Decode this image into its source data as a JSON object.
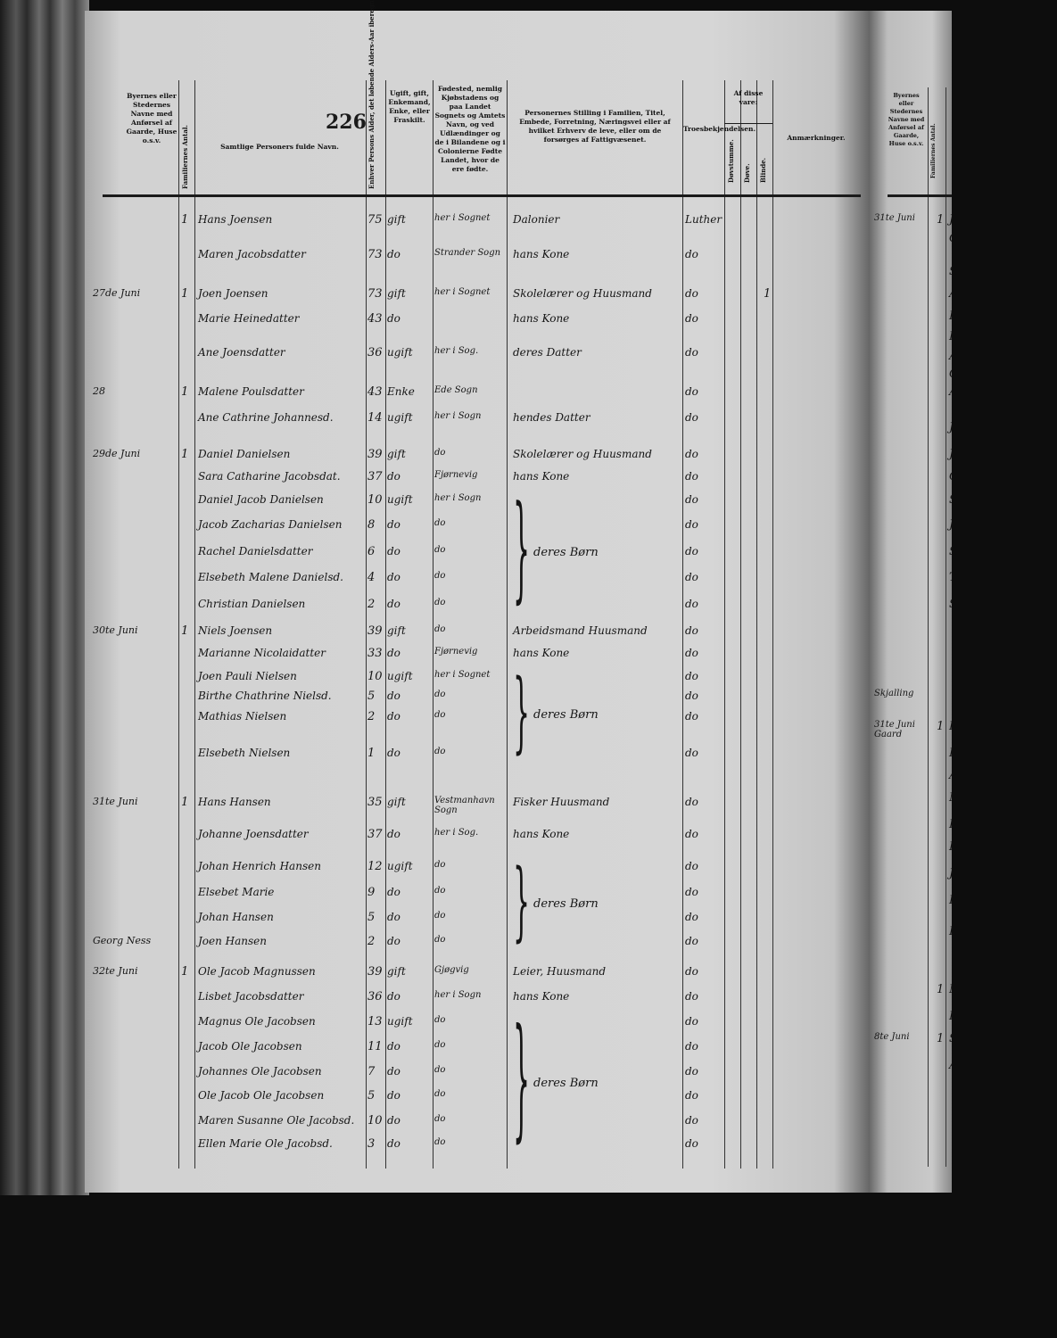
{
  "page_number": "226",
  "headers": {
    "place": "Byernes eller Stedernes Navne med Anførsel af Gaarde, Huse o.s.v.",
    "families": "Familiernes Antal.",
    "name": "Samtlige Personers fulde Navn.",
    "age": "Enhver Persons Alder, det løbende Alders-Aar iberegnet.",
    "civil": "Ugift, gift, Enkemand, Enke, eller Fraskilt.",
    "birthplace": "Fødested, nemlig Kjøbstadens og paa Landet Sognets og Amtets Navn, og ved Udlændinger og de i Bilandene og i Colonierne Fødte Landet, hvor de ere fødte.",
    "occupation": "Personernes Stilling i Familien, Titel, Embede, Forretning, Næringsvei eller af hvilket Erhverv de leve, eller om de forsørges af Fattigvæsenet.",
    "religion": "Troesbekjendelsen.",
    "of_these": "Af disse vare:",
    "deaf_mute": "Døvstumme.",
    "deaf": "Døve.",
    "blind": "Blinde.",
    "remarks": "Anmærkninger."
  },
  "rows": [
    {
      "place": "",
      "fam": "1",
      "name": "Hans Joensen",
      "age": "75",
      "civil": "gift",
      "birth": "her i Sognet",
      "occ": "Dalonier",
      "rel": "Luther",
      "mark": ""
    },
    {
      "place": "",
      "fam": "",
      "name": "Maren Jacobsdatter",
      "age": "73",
      "civil": "do",
      "birth": "Strander Sogn",
      "occ": "hans Kone",
      "rel": "do",
      "mark": ""
    },
    {
      "place": "27de Juni",
      "fam": "1",
      "name": "Joen Joensen",
      "age": "73",
      "civil": "gift",
      "birth": "her i Sognet",
      "occ": "Skolelærer og Huusmand",
      "rel": "do",
      "mark": "1"
    },
    {
      "place": "",
      "fam": "",
      "name": "Marie Heinedatter",
      "age": "43",
      "civil": "do",
      "birth": "",
      "occ": "hans Kone",
      "rel": "do",
      "mark": ""
    },
    {
      "place": "",
      "fam": "",
      "name": "Ane Joensdatter",
      "age": "36",
      "civil": "ugift",
      "birth": "her i Sog.",
      "occ": "deres Datter",
      "rel": "do",
      "mark": ""
    },
    {
      "place": "28",
      "fam": "1",
      "name": "Malene Poulsdatter",
      "age": "43",
      "civil": "Enke",
      "birth": "Ede Sogn",
      "occ": "",
      "rel": "do",
      "mark": ""
    },
    {
      "place": "",
      "fam": "",
      "name": "Ane Cathrine Johannesd.",
      "age": "14",
      "civil": "ugift",
      "birth": "her i Sogn",
      "occ": "hendes Datter",
      "rel": "do",
      "mark": ""
    },
    {
      "place": "29de Juni",
      "fam": "1",
      "name": "Daniel Danielsen",
      "age": "39",
      "civil": "gift",
      "birth": "do",
      "occ": "Skolelærer og Huusmand",
      "rel": "do",
      "mark": ""
    },
    {
      "place": "",
      "fam": "",
      "name": "Sara Catharine Jacobsdat.",
      "age": "37",
      "civil": "do",
      "birth": "Fjørnevig",
      "occ": "hans Kone",
      "rel": "do",
      "mark": ""
    },
    {
      "place": "",
      "fam": "",
      "name": "Daniel Jacob Danielsen",
      "age": "10",
      "civil": "ugift",
      "birth": "her i Sogn",
      "occ": "",
      "rel": "do",
      "mark": ""
    },
    {
      "place": "",
      "fam": "",
      "name": "Jacob Zacharias Danielsen",
      "age": "8",
      "civil": "do",
      "birth": "do",
      "occ": "",
      "rel": "do",
      "mark": ""
    },
    {
      "place": "",
      "fam": "",
      "name": "Rachel Danielsdatter",
      "age": "6",
      "civil": "do",
      "birth": "do",
      "occ": "",
      "rel": "do",
      "mark": ""
    },
    {
      "place": "",
      "fam": "",
      "name": "Elsebeth Malene Danielsd.",
      "age": "4",
      "civil": "do",
      "birth": "do",
      "occ": "",
      "rel": "do",
      "mark": ""
    },
    {
      "place": "",
      "fam": "",
      "name": "Christian Danielsen",
      "age": "2",
      "civil": "do",
      "birth": "do",
      "occ": "",
      "rel": "do",
      "mark": ""
    },
    {
      "place": "30te Juni",
      "fam": "1",
      "name": "Niels Joensen",
      "age": "39",
      "civil": "gift",
      "birth": "do",
      "occ": "Arbeidsmand Huusmand",
      "rel": "do",
      "mark": ""
    },
    {
      "place": "",
      "fam": "",
      "name": "Marianne Nicolaidatter",
      "age": "33",
      "civil": "do",
      "birth": "Fjørnevig",
      "occ": "hans Kone",
      "rel": "do",
      "mark": ""
    },
    {
      "place": "",
      "fam": "",
      "name": "Joen Pauli Nielsen",
      "age": "10",
      "civil": "ugift",
      "birth": "her i Sognet",
      "occ": "",
      "rel": "do",
      "mark": ""
    },
    {
      "place": "",
      "fam": "",
      "name": "Birthe Chathrine Nielsd.",
      "age": "5",
      "civil": "do",
      "birth": "do",
      "occ": "",
      "rel": "do",
      "mark": ""
    },
    {
      "place": "",
      "fam": "",
      "name": "Mathias Nielsen",
      "age": "2",
      "civil": "do",
      "birth": "do",
      "occ": "",
      "rel": "do",
      "mark": ""
    },
    {
      "place": "",
      "fam": "",
      "name": "Elsebeth Nielsen",
      "age": "1",
      "civil": "do",
      "birth": "do",
      "occ": "",
      "rel": "do",
      "mark": ""
    },
    {
      "place": "31te Juni",
      "fam": "1",
      "name": "Hans Hansen",
      "age": "35",
      "civil": "gift",
      "birth": "Vestmanhavn Sogn",
      "occ": "Fisker   Huusmand",
      "rel": "do",
      "mark": ""
    },
    {
      "place": "",
      "fam": "",
      "name": "Johanne Joensdatter",
      "age": "37",
      "civil": "do",
      "birth": "her i Sog.",
      "occ": "hans Kone",
      "rel": "do",
      "mark": ""
    },
    {
      "place": "",
      "fam": "",
      "name": "Johan Henrich Hansen",
      "age": "12",
      "civil": "ugift",
      "birth": "do",
      "occ": "",
      "rel": "do",
      "mark": ""
    },
    {
      "place": "",
      "fam": "",
      "name": "Elsebet Marie",
      "age": "9",
      "civil": "do",
      "birth": "do",
      "occ": "",
      "rel": "do",
      "mark": ""
    },
    {
      "place": "",
      "fam": "",
      "name": "Johan Hansen",
      "age": "5",
      "civil": "do",
      "birth": "do",
      "occ": "",
      "rel": "do",
      "mark": ""
    },
    {
      "place": "Georg Ness",
      "fam": "",
      "name": "Joen Hansen",
      "age": "2",
      "civil": "do",
      "birth": "do",
      "occ": "",
      "rel": "do",
      "mark": ""
    },
    {
      "place": "32te Juni",
      "fam": "1",
      "name": "Ole Jacob Magnussen",
      "age": "39",
      "civil": "gift",
      "birth": "Gjøgvig",
      "occ": "Leier, Huusmand",
      "rel": "do",
      "mark": ""
    },
    {
      "place": "",
      "fam": "",
      "name": "Lisbet Jacobsdatter",
      "age": "36",
      "civil": "do",
      "birth": "her i Sogn",
      "occ": "hans Kone",
      "rel": "do",
      "mark": ""
    },
    {
      "place": "",
      "fam": "",
      "name": "Magnus Ole Jacobsen",
      "age": "13",
      "civil": "ugift",
      "birth": "do",
      "occ": "",
      "rel": "do",
      "mark": ""
    },
    {
      "place": "",
      "fam": "",
      "name": "Jacob Ole Jacobsen",
      "age": "11",
      "civil": "do",
      "birth": "do",
      "occ": "",
      "rel": "do",
      "mark": ""
    },
    {
      "place": "",
      "fam": "",
      "name": "Johannes Ole Jacobsen",
      "age": "7",
      "civil": "do",
      "birth": "do",
      "occ": "",
      "rel": "do",
      "mark": ""
    },
    {
      "place": "",
      "fam": "",
      "name": "Ole Jacob Ole Jacobsen",
      "age": "5",
      "civil": "do",
      "birth": "do",
      "occ": "",
      "rel": "do",
      "mark": ""
    },
    {
      "place": "",
      "fam": "",
      "name": "Maren Susanne Ole Jacobsd.",
      "age": "10",
      "civil": "do",
      "birth": "do",
      "occ": "",
      "rel": "do",
      "mark": ""
    },
    {
      "place": "",
      "fam": "",
      "name": "Ellen Marie Ole Jacobsd.",
      "age": "3",
      "civil": "do",
      "birth": "do",
      "occ": "",
      "rel": "do",
      "mark": ""
    }
  ],
  "brace_groups": [
    {
      "label": "deres Børn"
    },
    {
      "label": "deres Børn"
    },
    {
      "label": "deres Børn"
    },
    {
      "label": "deres Børn"
    }
  ],
  "right_page": {
    "entries": [
      {
        "place": "31te Juni",
        "fam": "1",
        "name": "Joh"
      },
      {
        "place": "",
        "fam": "",
        "name": "Chr"
      },
      {
        "place": "",
        "fam": "",
        "name": "Suf"
      },
      {
        "place": "",
        "fam": "",
        "name": "Ane"
      },
      {
        "place": "",
        "fam": "",
        "name": "Peter"
      },
      {
        "place": "",
        "fam": "",
        "name": "Peter"
      },
      {
        "place": "",
        "fam": "",
        "name": "Ane"
      },
      {
        "place": "",
        "fam": "",
        "name": "Ole"
      },
      {
        "place": "",
        "fam": "",
        "name": "Ane"
      },
      {
        "place": "",
        "fam": "",
        "name": "Jacob"
      },
      {
        "place": "",
        "fam": "",
        "name": "Joen"
      },
      {
        "place": "",
        "fam": "",
        "name": "Chr"
      },
      {
        "place": "",
        "fam": "",
        "name": "Sigga"
      },
      {
        "place": "",
        "fam": "",
        "name": "Joha"
      },
      {
        "place": "",
        "fam": "",
        "name": "Sus"
      },
      {
        "place": "",
        "fam": "",
        "name": "Thom"
      },
      {
        "place": "",
        "fam": "",
        "name": "Susan"
      },
      {
        "place": "Skjalling",
        "fam": "",
        "name": ""
      },
      {
        "place": "31te Juni Gaard",
        "fam": "1",
        "name": "Lisbet"
      },
      {
        "place": "",
        "fam": "",
        "name": "Han"
      },
      {
        "place": "",
        "fam": "",
        "name": "Ane"
      },
      {
        "place": "",
        "fam": "",
        "name": "Ma"
      },
      {
        "place": "",
        "fam": "",
        "name": "Ellen"
      },
      {
        "place": "",
        "fam": "",
        "name": "Peth"
      },
      {
        "place": "",
        "fam": "",
        "name": "Jacob"
      },
      {
        "place": "",
        "fam": "",
        "name": "Ellen"
      },
      {
        "place": "",
        "fam": "",
        "name": "Elsebe"
      },
      {
        "place": "",
        "fam": "1",
        "name": "Mar"
      },
      {
        "place": "",
        "fam": "",
        "name": "Ellen"
      },
      {
        "place": "8te Juni",
        "fam": "1",
        "name": "Sigga"
      },
      {
        "place": "",
        "fam": "",
        "name": "Ant"
      }
    ]
  }
}
